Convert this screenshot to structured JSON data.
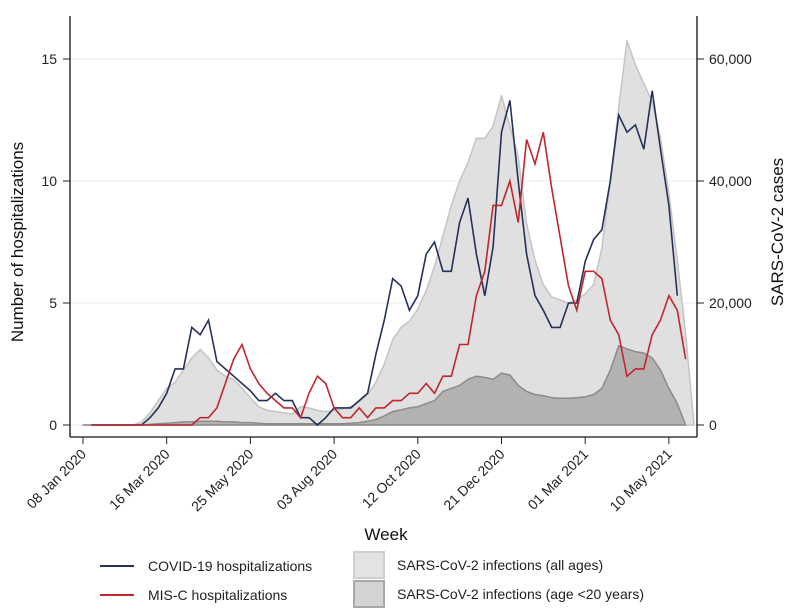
{
  "chart_data": {
    "type": "line",
    "title": "",
    "xlabel": "Week",
    "ylabel": "Number of hospitalizations",
    "y2label": "SARS-CoV-2 cases",
    "ylim": [
      0,
      16.5
    ],
    "y2lim": [
      0,
      66000
    ],
    "yticks": [
      0,
      5,
      10,
      15
    ],
    "ytick_labels": [
      "0",
      "5",
      "10",
      "15"
    ],
    "y2ticks": [
      0,
      20000,
      40000,
      60000
    ],
    "y2tick_labels": [
      "0",
      "20,000",
      "40,000",
      "60,000"
    ],
    "xticks_week_index": [
      0,
      10,
      20,
      30,
      40,
      50,
      60,
      70
    ],
    "xtick_labels": [
      "08 Jan 2020",
      "16 Mar 2020",
      "25 May 2020",
      "03 Aug 2020",
      "12 Oct 2020",
      "21 Dec 2020",
      "01 Mar 2021",
      "10 May 2021"
    ],
    "x_range_weeks": [
      -1.5,
      73
    ],
    "grid": true,
    "legend_position": "bottom",
    "series": [
      {
        "name": "SARS-CoV-2 infections (all ages)",
        "kind": "area",
        "axis": "right",
        "color": "#e0e0e0",
        "stroke": "#c4c4c4",
        "start_week": 0,
        "values": [
          0,
          0,
          0,
          0,
          0,
          0,
          0,
          500,
          2000,
          4000,
          6000,
          7000,
          9000,
          11000,
          12400,
          11000,
          9000,
          8000,
          7500,
          6000,
          4500,
          3000,
          2400,
          2200,
          2000,
          1800,
          3000,
          2800,
          2400,
          2200,
          2400,
          2600,
          3000,
          3800,
          5000,
          7000,
          10000,
          14000,
          16000,
          17000,
          19000,
          22000,
          26000,
          31000,
          36000,
          40000,
          43000,
          47000,
          47000,
          49000,
          54000,
          49000,
          44000,
          33000,
          27000,
          23000,
          21000,
          20500,
          20000,
          20500,
          21500,
          23000,
          29000,
          40000,
          52000,
          63000,
          59000,
          56000,
          53000,
          47000,
          38000,
          27000,
          15000,
          0
        ]
      },
      {
        "name": "SARS-CoV-2 infections (age <20 years)",
        "kind": "area",
        "axis": "right",
        "color": "#b3b2b1",
        "stroke": "#8c8b8a",
        "start_week": 0,
        "values": [
          0,
          0,
          0,
          0,
          0,
          0,
          0,
          0,
          100,
          200,
          300,
          400,
          500,
          500,
          600,
          600,
          600,
          500,
          500,
          400,
          400,
          300,
          200,
          200,
          200,
          200,
          200,
          200,
          200,
          200,
          200,
          200,
          300,
          400,
          600,
          900,
          1500,
          2200,
          2500,
          2800,
          3000,
          3500,
          4000,
          5500,
          6000,
          6500,
          7500,
          8000,
          7800,
          7500,
          8500,
          8200,
          6500,
          5500,
          5000,
          4800,
          4500,
          4400,
          4400,
          4500,
          4600,
          5000,
          6000,
          9000,
          13000,
          12500,
          12000,
          11800,
          11000,
          9000,
          6000,
          3500,
          0
        ]
      },
      {
        "name": "COVID-19 hospitalizations",
        "kind": "line",
        "axis": "left",
        "color": "#25315a",
        "start_week": 1,
        "values": [
          0,
          0,
          0,
          0,
          0,
          0,
          0,
          0.3,
          0.7,
          1.3,
          2.3,
          2.3,
          4.0,
          3.7,
          4.3,
          2.6,
          2.3,
          2.0,
          1.7,
          1.4,
          1.0,
          1.0,
          1.3,
          1.0,
          1.0,
          0.3,
          0.3,
          0,
          0.3,
          0.7,
          0.7,
          0.7,
          1.0,
          1.3,
          2.9,
          4.3,
          6.0,
          5.7,
          4.7,
          5.3,
          7.0,
          7.5,
          6.3,
          6.3,
          8.3,
          9.3,
          7.0,
          5.3,
          7.3,
          12.0,
          13.3,
          10.0,
          7.0,
          5.3,
          4.7,
          4.0,
          4.0,
          5.0,
          5.0,
          6.7,
          7.6,
          8.0,
          10.0,
          12.7,
          12.0,
          12.3,
          11.3,
          13.7,
          11.3,
          9.0,
          5.3
        ]
      },
      {
        "name": "MIS-C hospitalizations",
        "kind": "line",
        "axis": "left",
        "color": "#c0272d",
        "start_week": 1,
        "values": [
          0,
          0,
          0,
          0,
          0,
          0,
          0,
          0,
          0,
          0,
          0,
          0,
          0,
          0.3,
          0.3,
          0.7,
          1.7,
          2.7,
          3.3,
          2.3,
          1.7,
          1.3,
          1.0,
          0.7,
          0.7,
          0.3,
          1.3,
          2.0,
          1.7,
          0.7,
          0.3,
          0.3,
          0.7,
          0.3,
          0.7,
          0.7,
          1.0,
          1.0,
          1.3,
          1.3,
          1.7,
          1.3,
          2.0,
          2.0,
          3.3,
          3.3,
          5.3,
          6.3,
          9.0,
          9.0,
          10.0,
          8.3,
          11.7,
          10.7,
          12.0,
          9.7,
          7.7,
          5.7,
          4.7,
          6.3,
          6.3,
          6.0,
          4.3,
          3.7,
          2.0,
          2.3,
          2.3,
          3.7,
          4.3,
          5.3,
          4.7,
          2.7
        ]
      }
    ]
  },
  "legend": {
    "items": [
      {
        "label": "COVID-19 hospitalizations",
        "type": "line",
        "color": "#25315a"
      },
      {
        "label": "MIS-C hospitalizations",
        "type": "line",
        "color": "#c0272d"
      },
      {
        "label": "SARS-CoV-2 infections (all ages)",
        "type": "box",
        "color": "#e0e0e0",
        "border": "#c9c9c9"
      },
      {
        "label": "SARS-CoV-2 infections (age <20 years)",
        "type": "box",
        "color": "#d4d4d4",
        "border": "#a9a9a9"
      }
    ]
  }
}
